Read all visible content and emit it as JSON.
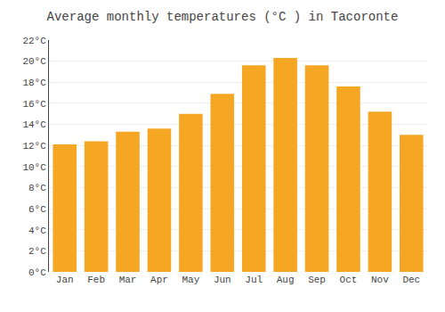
{
  "chart_data": {
    "type": "bar",
    "title": "Average monthly temperatures (°C ) in Tacoronte",
    "categories": [
      "Jan",
      "Feb",
      "Mar",
      "Apr",
      "May",
      "Jun",
      "Jul",
      "Aug",
      "Sep",
      "Oct",
      "Nov",
      "Dec"
    ],
    "values": [
      12.1,
      12.4,
      13.3,
      13.6,
      15.0,
      16.9,
      19.6,
      20.3,
      19.6,
      17.6,
      15.2,
      13.0
    ],
    "color": "#F5A623",
    "ylim": [
      0,
      22
    ],
    "yticks": [
      {
        "value": 0,
        "label": "0°C"
      },
      {
        "value": 2,
        "label": "2°C"
      },
      {
        "value": 4,
        "label": "4°C"
      },
      {
        "value": 6,
        "label": "6°C"
      },
      {
        "value": 8,
        "label": "8°C"
      },
      {
        "value": 10,
        "label": "10°C"
      },
      {
        "value": 12,
        "label": "12°C"
      },
      {
        "value": 14,
        "label": "14°C"
      },
      {
        "value": 16,
        "label": "16°C"
      },
      {
        "value": 18,
        "label": "18°C"
      },
      {
        "value": 20,
        "label": "20°C"
      },
      {
        "value": 22,
        "label": "22°C"
      }
    ],
    "grid": true
  }
}
